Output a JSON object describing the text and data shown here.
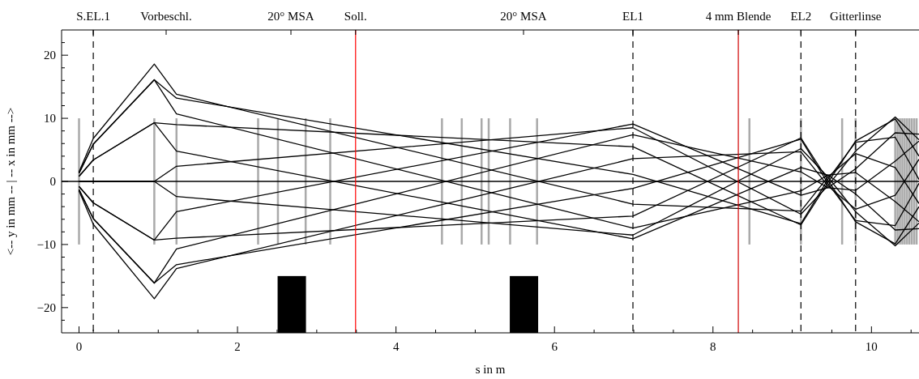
{
  "chart_data": {
    "type": "line",
    "xlabel": "s in m",
    "ylabel": "<-- y in mm -- | -- x in mm -->",
    "xlim": [
      -0.22,
      10.6
    ],
    "ylim": [
      -24,
      24
    ],
    "xticks": [
      0,
      {
        "value": 0.18,
        "label": null
      },
      {
        "value": 0.5,
        "label": null
      },
      {
        "value": 1,
        "label": null
      },
      {
        "value": 1.5,
        "label": null
      },
      2,
      {
        "value": 2.5,
        "label": null
      },
      {
        "value": 3,
        "label": null
      },
      {
        "value": 3.5,
        "label": null
      },
      4,
      {
        "value": 4.5,
        "label": null
      },
      {
        "value": 5,
        "label": null
      },
      {
        "value": 5.5,
        "label": null
      },
      6,
      {
        "value": 6.5,
        "label": null
      },
      {
        "value": 7,
        "label": null
      },
      {
        "value": 7.5,
        "label": null
      },
      8,
      {
        "value": 8.5,
        "label": null
      },
      {
        "value": 9,
        "label": null
      },
      {
        "value": 9.5,
        "label": null
      },
      10,
      {
        "value": 10.5,
        "label": null
      }
    ],
    "yticks": [
      {
        "value": -22,
        "label": null
      },
      {
        "value": -20,
        "label": "−20"
      },
      {
        "value": -18,
        "label": null
      },
      {
        "value": -16,
        "label": null
      },
      {
        "value": -14,
        "label": null
      },
      {
        "value": -12,
        "label": null
      },
      {
        "value": -10,
        "label": "−10"
      },
      {
        "value": -8,
        "label": null
      },
      {
        "value": -6,
        "label": null
      },
      {
        "value": -4,
        "label": null
      },
      {
        "value": -2,
        "label": null
      },
      0,
      {
        "value": 2,
        "label": null
      },
      {
        "value": 4,
        "label": null
      },
      {
        "value": 6,
        "label": null
      },
      {
        "value": 8,
        "label": null
      },
      10,
      {
        "value": 12,
        "label": null
      },
      {
        "value": 14,
        "label": null
      },
      {
        "value": 16,
        "label": null
      },
      {
        "value": 18,
        "label": null
      },
      20,
      {
        "value": 22,
        "label": null
      }
    ],
    "grid": false,
    "ref_lines": [
      {
        "axis": "y",
        "value": 0,
        "color": "#000000",
        "line_style": "solid"
      },
      {
        "axis": "x",
        "value": 0.18,
        "color": "#000000",
        "line_style": "dashed",
        "label": "S.EL.1"
      },
      {
        "axis": "x",
        "value": 3.49,
        "color": "#ff0000",
        "line_style": "solid",
        "label": "Soll."
      },
      {
        "axis": "x",
        "value": 6.99,
        "color": "#000000",
        "line_style": "dashed",
        "label": "EL1"
      },
      {
        "axis": "x",
        "value": 8.32,
        "color": "#d00000",
        "line_style": "solid",
        "label": "4 mm Blende"
      },
      {
        "axis": "x",
        "value": 9.11,
        "color": "#000000",
        "line_style": "dashed",
        "label": "EL2"
      },
      {
        "axis": "x",
        "value": 9.8,
        "color": "#000000",
        "line_style": "dashed",
        "label": "Gitterlinse"
      }
    ],
    "annotations": [
      "Vorbeschl.",
      "20° MSA",
      "20° MSA"
    ],
    "x": [
      0,
      0.18,
      0.95,
      1.23,
      6.99,
      9.11,
      9.45,
      9.8,
      10.3,
      10.6
    ],
    "series": [
      {
        "type": "bar",
        "color": "#aaaaaa",
        "x": [
          0,
          0.95,
          1.23,
          2.26,
          2.51,
          2.86,
          3.17,
          4.58,
          4.83,
          5.08,
          5.17,
          5.44,
          5.78,
          8.46,
          9.11,
          9.63,
          9.8,
          10.3,
          10.33,
          10.36,
          10.39,
          10.42,
          10.45,
          10.48,
          10.51,
          10.54,
          10.57
        ],
        "base": [
          -10,
          -10,
          -10,
          -10,
          -10,
          -10,
          -10,
          -10,
          -10,
          -10,
          -10,
          -10,
          -10,
          -10,
          -10,
          -10,
          -10,
          -10,
          -10,
          -10,
          -10,
          -10,
          -10,
          -10,
          -10,
          -10,
          -10
        ],
        "values": [
          20,
          20,
          20,
          20,
          20,
          20,
          20,
          20,
          20,
          20,
          20,
          20,
          20,
          20,
          20,
          20,
          20,
          20,
          20,
          20,
          20,
          20,
          20,
          20,
          20,
          20,
          20
        ]
      },
      {
        "type": "bar",
        "color": "#000000",
        "x": [
          2.685,
          5.615
        ],
        "base": [
          -24,
          -24
        ],
        "values": [
          9,
          9
        ]
      },
      {
        "color": "#000000",
        "values": [
          1.5,
          6.8,
          18.6,
          13.8,
          -3.6,
          -4.7,
          0.7,
          4.4,
          2.2,
          -3.5
        ]
      },
      {
        "color": "#000000",
        "values": [
          1.3,
          5.9,
          16.1,
          10.7,
          -7.4,
          -1.5,
          1,
          1.4,
          -3.2,
          -6.4
        ]
      },
      {
        "color": "#000000",
        "values": [
          0.8,
          3.4,
          9.3,
          4.8,
          -9.1,
          2.2,
          1,
          -2,
          -7.7,
          -7.5
        ]
      },
      {
        "color": "#000000",
        "values": [
          0,
          0,
          0,
          -2.4,
          -8.5,
          5.2,
          0.7,
          -4.8,
          -10.2,
          -6.6
        ]
      },
      {
        "color": "#000000",
        "values": [
          -0.8,
          -3.4,
          -9.3,
          -9,
          -5.5,
          6.9,
          0.2,
          -6.4,
          -9.9,
          -4
        ]
      },
      {
        "color": "#000000",
        "values": [
          -1.3,
          -5.9,
          -16.1,
          -13.2,
          -1.1,
          6.7,
          -0.3,
          -6.2,
          -7,
          -0.3
        ]
      },
      {
        "color": "#000000",
        "values": [
          -1.5,
          -6.8,
          -18.6,
          -13.8,
          3.6,
          4.7,
          -0.7,
          -4.4,
          -2.2,
          3.5
        ]
      },
      {
        "color": "#000000",
        "values": [
          -1.3,
          -5.9,
          -16.1,
          -10.7,
          7.4,
          1.5,
          -1,
          -1.4,
          3.2,
          6.4
        ]
      },
      {
        "color": "#000000",
        "values": [
          -0.8,
          -3.4,
          -9.3,
          -4.8,
          9.1,
          -2.2,
          -1,
          2,
          7.7,
          7.5
        ]
      },
      {
        "color": "#000000",
        "values": [
          0,
          0,
          0,
          2.4,
          8.5,
          -5.2,
          -0.7,
          4.8,
          10.2,
          6.6
        ]
      },
      {
        "color": "#000000",
        "values": [
          0.8,
          3.4,
          9.3,
          9,
          5.5,
          -6.9,
          -0.2,
          6.4,
          9.9,
          4
        ]
      },
      {
        "color": "#000000",
        "values": [
          1.3,
          5.9,
          16.1,
          13.2,
          1.1,
          -6.7,
          0.3,
          6.2,
          7,
          0.3
        ]
      }
    ]
  }
}
